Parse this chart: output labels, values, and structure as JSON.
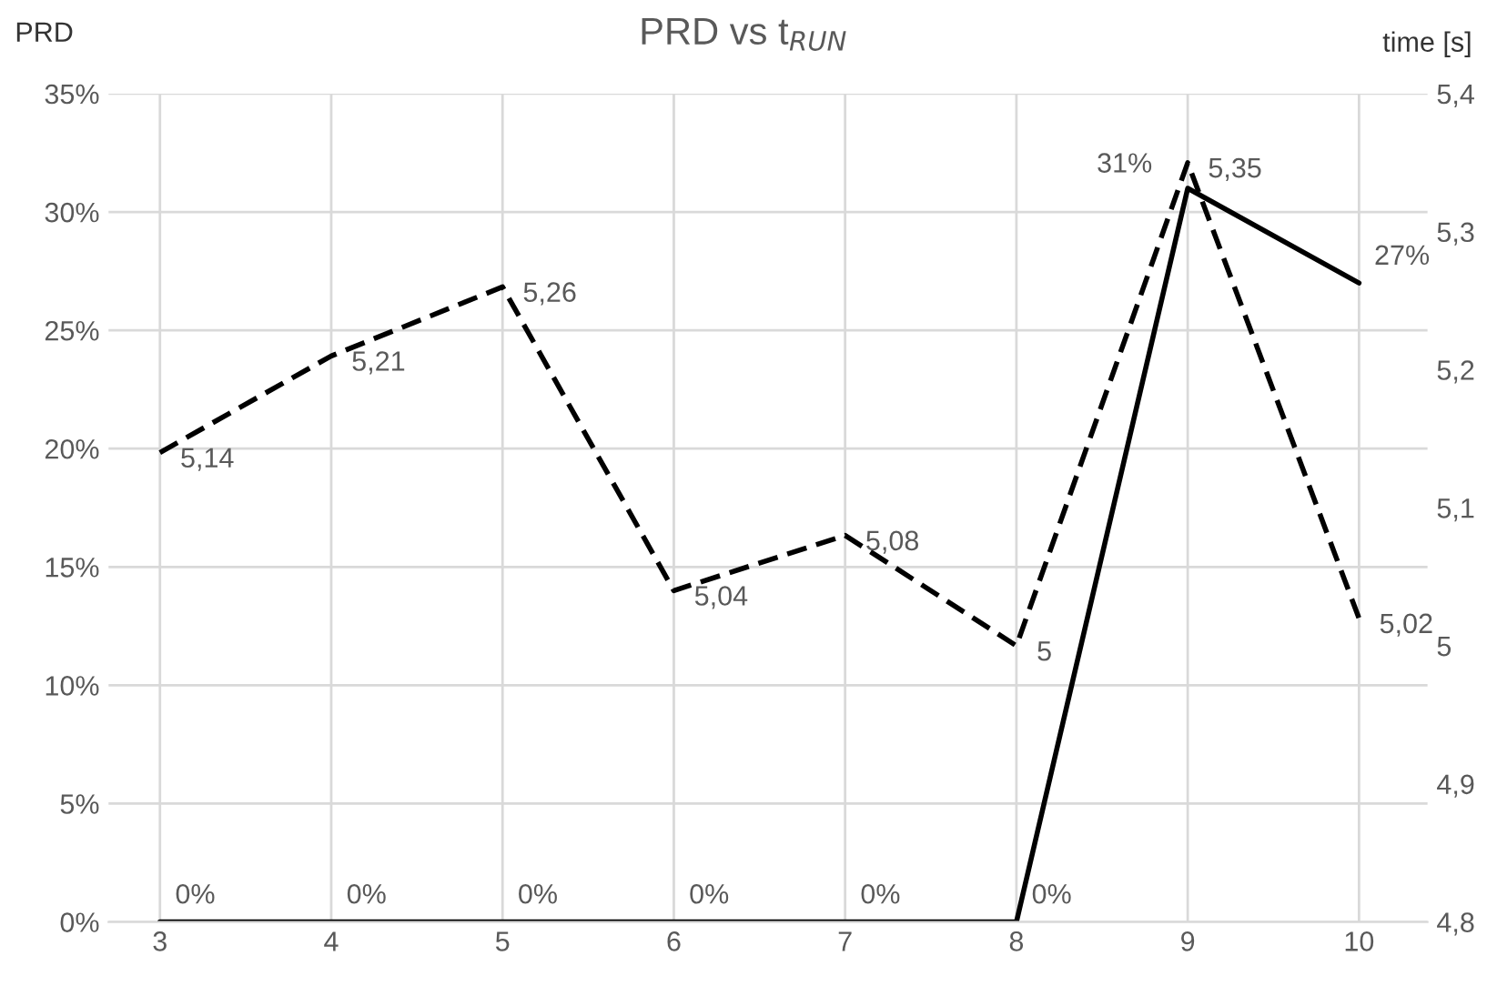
{
  "chart_data": {
    "type": "line",
    "title": "PRD vs t$_{RUN}$",
    "ylabel": "PRD",
    "y2label": "time [s]",
    "categories": [
      "3",
      "4",
      "5",
      "6",
      "7",
      "8",
      "9",
      "10"
    ],
    "series": [
      {
        "color": "#000000",
        "line_style": "solid",
        "values": [
          0,
          0,
          0,
          0,
          0,
          0,
          31,
          27
        ],
        "value_labels": [
          "0%",
          "0%",
          "0%",
          "0%",
          "0%",
          "0%",
          "31%",
          "27%"
        ]
      },
      {
        "color": "#000000",
        "line_style": "dashed",
        "axis": "y2",
        "values": [
          5.14,
          5.21,
          5.26,
          5.04,
          5.08,
          5.0,
          5.35,
          5.02
        ],
        "value_labels": [
          "5,14",
          "5,21",
          "5,26",
          "5,04",
          "5,08",
          "5",
          "5,35",
          "5,02"
        ]
      }
    ],
    "ylim": [
      0,
      35
    ],
    "yticks": [
      {
        "value": 0,
        "label": "0%"
      },
      {
        "value": 5,
        "label": "5%"
      },
      {
        "value": 10,
        "label": "10%"
      },
      {
        "value": 15,
        "label": "15%"
      },
      {
        "value": 20,
        "label": "20%"
      },
      {
        "value": 25,
        "label": "25%"
      },
      {
        "value": 30,
        "label": "30%"
      },
      {
        "value": 35,
        "label": "35%"
      }
    ],
    "y2lim": [
      4.8,
      5.4
    ],
    "y2ticks": [
      {
        "value": 4.8,
        "label": "4,8"
      },
      {
        "value": 4.9,
        "label": "4,9"
      },
      {
        "value": 5.0,
        "label": "5"
      },
      {
        "value": 5.1,
        "label": "5,1"
      },
      {
        "value": 5.2,
        "label": "5,2"
      },
      {
        "value": 5.3,
        "label": "5,3"
      },
      {
        "value": 5.4,
        "label": "5,4"
      }
    ],
    "grid": true,
    "legend": false
  }
}
